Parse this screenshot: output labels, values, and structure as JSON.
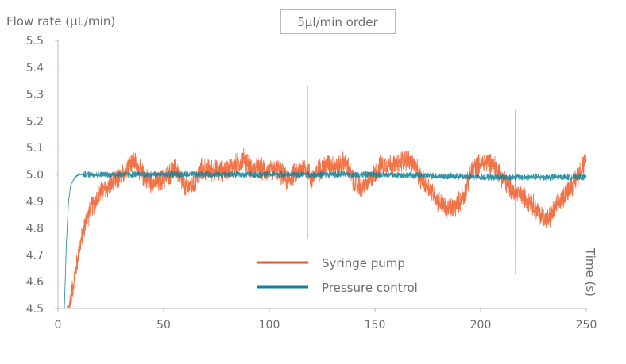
{
  "chart_data": {
    "type": "line",
    "ylabel": "Flow rate (µL/min)",
    "xlabel": "Time (s)",
    "annotation": "5µl/min order",
    "xlim": [
      0,
      250
    ],
    "ylim": [
      4.5,
      5.5
    ],
    "x_ticks": [
      "0",
      "50",
      "100",
      "150",
      "200",
      "250"
    ],
    "y_ticks": [
      "4.5",
      "4.6",
      "4.7",
      "4.8",
      "4.9",
      "5.0",
      "5.1",
      "5.2",
      "5.3",
      "5.4",
      "5.5"
    ],
    "grid": false,
    "legend_position": "bottom-center",
    "series": [
      {
        "name": "Syringe pump",
        "color": "#f05a28",
        "noise_amplitude": 0.04,
        "x": [
          3,
          5,
          8,
          10,
          13,
          16,
          20,
          25,
          30,
          33,
          36,
          40,
          44,
          48,
          52,
          56,
          60,
          64,
          68,
          72,
          76,
          80,
          85,
          88,
          92,
          96,
          100,
          104,
          108,
          112,
          116,
          118,
          120,
          124,
          128,
          132,
          136,
          140,
          144,
          148,
          152,
          156,
          160,
          164,
          168,
          172,
          176,
          180,
          184,
          188,
          192,
          196,
          200,
          204,
          208,
          212,
          216,
          220,
          224,
          228,
          232,
          236,
          240,
          244,
          248,
          250
        ],
        "y": [
          4.42,
          4.5,
          4.62,
          4.72,
          4.82,
          4.88,
          4.93,
          4.96,
          4.99,
          5.04,
          5.05,
          5.0,
          4.97,
          4.97,
          5.0,
          5.02,
          4.95,
          4.96,
          5.02,
          5.02,
          5.01,
          5.02,
          5.04,
          5.06,
          5.02,
          5.02,
          5.01,
          5.02,
          4.98,
          5.0,
          5.03,
          5.02,
          4.98,
          5.02,
          5.04,
          5.03,
          5.05,
          4.97,
          4.95,
          4.98,
          5.03,
          5.04,
          5.03,
          5.06,
          5.04,
          4.98,
          4.95,
          4.9,
          4.87,
          4.88,
          4.92,
          5.02,
          5.04,
          5.05,
          5.02,
          4.97,
          4.93,
          4.92,
          4.9,
          4.85,
          4.83,
          4.88,
          4.93,
          4.97,
          5.03,
          5.05
        ],
        "spikes": [
          {
            "x": 118,
            "max": 5.33,
            "min": 4.76
          },
          {
            "x": 216.5,
            "max": 5.24,
            "min": 4.63
          }
        ]
      },
      {
        "name": "Pressure control",
        "color": "#12809a",
        "noise_amplitude": 0.012,
        "x": [
          2,
          3,
          4,
          5,
          6,
          8,
          10,
          50,
          100,
          150,
          200,
          250
        ],
        "y": [
          4.3,
          4.5,
          4.75,
          4.9,
          4.96,
          4.99,
          5.0,
          5.0,
          5.0,
          5.0,
          4.99,
          4.99
        ],
        "spikes": []
      }
    ]
  }
}
